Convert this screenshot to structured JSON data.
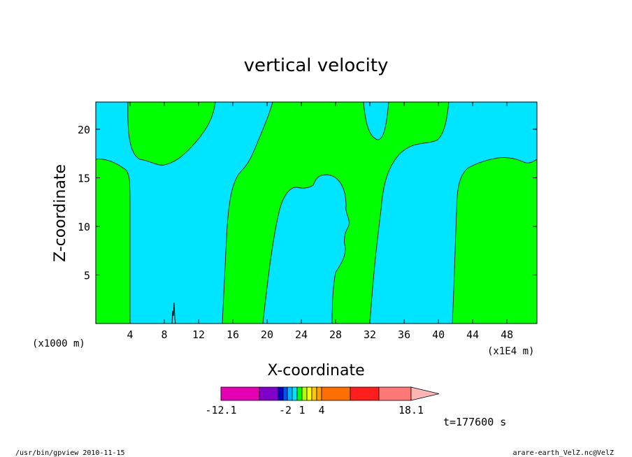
{
  "chart_data": {
    "type": "heatmap",
    "title": "vertical velocity",
    "xlabel": "X-coordinate",
    "ylabel": "Z-coordinate",
    "x_unit_left": "(x1000 m)",
    "x_unit_right": "(x1E4 m)",
    "xlim": [
      0,
      51.5
    ],
    "ylim": [
      0,
      22.8
    ],
    "xticks": [
      4,
      8,
      12,
      16,
      20,
      24,
      28,
      32,
      36,
      40,
      44,
      48
    ],
    "yticks": [
      5,
      10,
      15,
      20
    ],
    "regions": [
      {
        "sign": "positive",
        "color": "#00ff00",
        "x_range": [
          0,
          3.9
        ],
        "top": 17
      },
      {
        "sign": "negative",
        "color": "#00e5ff",
        "x_range": [
          3.9,
          14.8
        ]
      },
      {
        "sign": "positive",
        "color": "#00ff00",
        "x_range": [
          14.8,
          19.5
        ],
        "upper_lobe_x": [
          4,
          13.5
        ],
        "upper_lobe_bottom": 16.5
      },
      {
        "sign": "negative",
        "color": "#00e5ff",
        "x_range": [
          19.5,
          27.5
        ],
        "top": 15.4
      },
      {
        "sign": "positive",
        "color": "#00ff00",
        "x_range": [
          27.5,
          32
        ]
      },
      {
        "sign": "negative",
        "color": "#00e5ff",
        "x_range": [
          32,
          41.3
        ],
        "upper_notch_x": [
          31.5,
          34.5
        ]
      },
      {
        "sign": "positive",
        "color": "#00ff00",
        "x_range": [
          41.3,
          51.5
        ],
        "top": 17
      }
    ],
    "colorbar": {
      "min": -12.1,
      "max": 18.1,
      "labels": [
        "-12.1",
        "-2",
        "1",
        "4",
        "18.1"
      ],
      "colors": [
        "#e600b4",
        "#8000c8",
        "#0000cc",
        "#0050ff",
        "#00b4ff",
        "#00e5ff",
        "#00ff00",
        "#b4ff00",
        "#ffff00",
        "#ffc800",
        "#ffa000",
        "#ff6e00",
        "#ff1e1e",
        "#ff7878",
        "#ffb4b4"
      ]
    },
    "time_label": "t=177600 s"
  },
  "footer": {
    "left": "/usr/bin/gpview  2010-11-15",
    "right": "arare-earth_VelZ.nc@VelZ"
  }
}
